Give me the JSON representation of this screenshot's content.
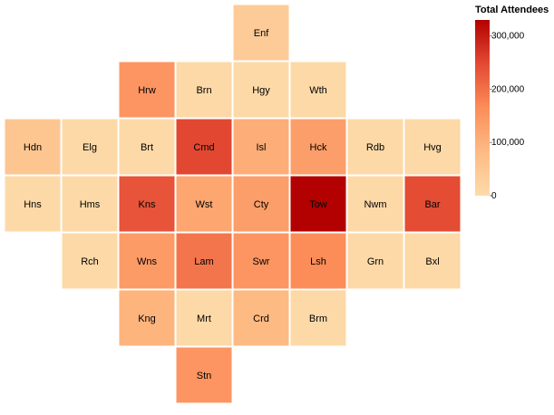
{
  "chart_data": {
    "type": "heatmap",
    "title": "",
    "legend": {
      "title": "Total Attendees",
      "placement": "top-right",
      "domain": [
        0,
        330000
      ],
      "ticks": [
        {
          "value": 0,
          "label": "0"
        },
        {
          "value": 100000,
          "label": "100,000"
        },
        {
          "value": 200000,
          "label": "200,000"
        },
        {
          "value": 300000,
          "label": "300,000"
        }
      ],
      "colors": [
        "#fddbaa",
        "#fdbb84",
        "#fc8d59",
        "#e34a33",
        "#b30000"
      ]
    },
    "grid": {
      "columns": 8,
      "rows": 7
    },
    "cells": [
      {
        "code": "Enf",
        "col": 4,
        "row": 0,
        "value": 40000
      },
      {
        "code": "Hrw",
        "col": 2,
        "row": 1,
        "value": 150000
      },
      {
        "code": "Brn",
        "col": 3,
        "row": 1,
        "value": 5000
      },
      {
        "code": "Hgy",
        "col": 4,
        "row": 1,
        "value": 5000
      },
      {
        "code": "Wth",
        "col": 5,
        "row": 1,
        "value": 5000
      },
      {
        "code": "Hdn",
        "col": 0,
        "row": 2,
        "value": 55000
      },
      {
        "code": "Elg",
        "col": 1,
        "row": 2,
        "value": 5000
      },
      {
        "code": "Brt",
        "col": 2,
        "row": 2,
        "value": 5000
      },
      {
        "code": "Cmd",
        "col": 3,
        "row": 2,
        "value": 250000
      },
      {
        "code": "Isl",
        "col": 4,
        "row": 2,
        "value": 105000
      },
      {
        "code": "Hck",
        "col": 5,
        "row": 2,
        "value": 135000
      },
      {
        "code": "Rdb",
        "col": 6,
        "row": 2,
        "value": 5000
      },
      {
        "code": "Hvg",
        "col": 7,
        "row": 2,
        "value": 5000
      },
      {
        "code": "Hns",
        "col": 0,
        "row": 3,
        "value": 5000
      },
      {
        "code": "Hms",
        "col": 1,
        "row": 3,
        "value": 5000
      },
      {
        "code": "Kns",
        "col": 2,
        "row": 3,
        "value": 235000
      },
      {
        "code": "Wst",
        "col": 3,
        "row": 3,
        "value": 120000
      },
      {
        "code": "Cty",
        "col": 4,
        "row": 3,
        "value": 135000
      },
      {
        "code": "Tow",
        "col": 5,
        "row": 3,
        "value": 330000
      },
      {
        "code": "Nwm",
        "col": 6,
        "row": 3,
        "value": 5000
      },
      {
        "code": "Bar",
        "col": 7,
        "row": 3,
        "value": 245000
      },
      {
        "code": "Rch",
        "col": 1,
        "row": 4,
        "value": 5000
      },
      {
        "code": "Wns",
        "col": 2,
        "row": 4,
        "value": 140000
      },
      {
        "code": "Lam",
        "col": 3,
        "row": 4,
        "value": 195000
      },
      {
        "code": "Swr",
        "col": 4,
        "row": 4,
        "value": 150000
      },
      {
        "code": "Lsh",
        "col": 5,
        "row": 4,
        "value": 165000
      },
      {
        "code": "Grn",
        "col": 6,
        "row": 4,
        "value": 5000
      },
      {
        "code": "Bxl",
        "col": 7,
        "row": 4,
        "value": 5000
      },
      {
        "code": "Kng",
        "col": 2,
        "row": 5,
        "value": 95000
      },
      {
        "code": "Mrt",
        "col": 3,
        "row": 5,
        "value": 5000
      },
      {
        "code": "Crd",
        "col": 4,
        "row": 5,
        "value": 85000
      },
      {
        "code": "Brm",
        "col": 5,
        "row": 5,
        "value": 5000
      },
      {
        "code": "Stn",
        "col": 3,
        "row": 6,
        "value": 150000
      }
    ]
  }
}
